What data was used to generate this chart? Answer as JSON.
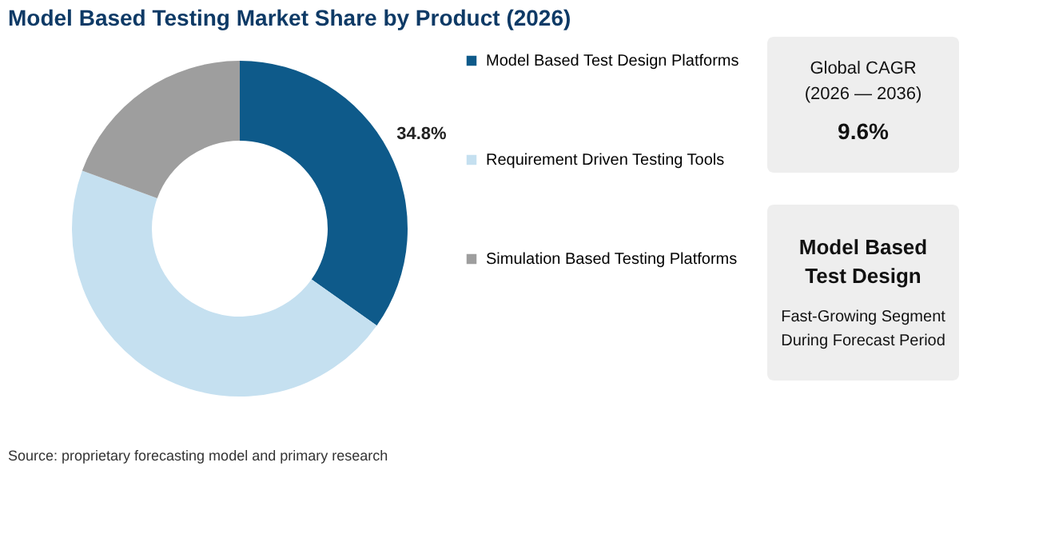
{
  "chart_data": {
    "type": "donut",
    "title": "Model Based Testing Market Share by Product (2026)",
    "categories": [
      "Model Based Test Design Platforms",
      "Requirement Driven Testing Tools",
      "Simulation Based Testing Platforms"
    ],
    "values": [
      34.8,
      45.8,
      19.4
    ],
    "colors": [
      "#0e5a8a",
      "#c5e0f0",
      "#9e9e9e"
    ],
    "value_labels": [
      "34.8%",
      null,
      null
    ],
    "legend": "right",
    "annotations": [
      "Source: proprietary forecasting model and primary research",
      "Global CAGR",
      "(2026 — 2036)",
      "9.6%",
      "Model Based Test Design",
      "Fast-Growing Segment During Forecast Period"
    ]
  }
}
